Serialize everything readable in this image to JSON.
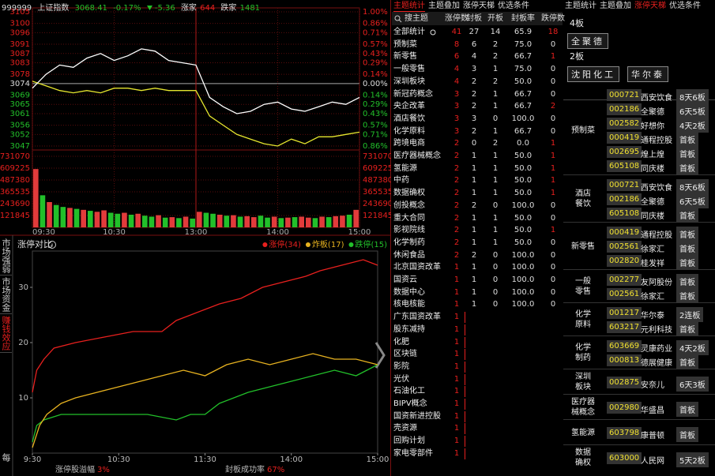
{
  "index_panel": {
    "header": {
      "code": "999999",
      "name": "上证指数",
      "price": "3068.41",
      "pct": "-0.17%",
      "change": "-5.36",
      "up_label": "涨家",
      "up": "644",
      "down_label": "跌家",
      "down": "1481"
    },
    "price_chart": {
      "ylim": [
        3047,
        3105
      ],
      "yticks": [
        3105,
        3100,
        3096,
        3091,
        3087,
        3083,
        3078,
        3074,
        3069,
        3065,
        3061,
        3056,
        3052,
        3047
      ],
      "pct_labels": [
        "1.00%",
        "0.86%",
        "0.71%",
        "0.57%",
        "0.43%",
        "0.29%",
        "0.14%",
        "0.00%",
        "0.14%",
        "0.29%",
        "0.43%",
        "0.57%",
        "0.71%",
        "0.86%"
      ],
      "xlim": [
        0,
        240
      ],
      "xticks": [
        {
          "value": 0,
          "label": "09:30"
        },
        {
          "value": 60,
          "label": "10:30"
        },
        {
          "value": 120,
          "label": "13:00"
        },
        {
          "value": 180,
          "label": "14:00"
        },
        {
          "value": 240,
          "label": "15:00"
        }
      ],
      "x": [
        0,
        10,
        20,
        30,
        40,
        50,
        60,
        70,
        80,
        90,
        100,
        110,
        120,
        130,
        140,
        150,
        160,
        170,
        180,
        190,
        200,
        210,
        220,
        230,
        240
      ],
      "index_values": [
        3072,
        3078,
        3082,
        3081,
        3085,
        3087,
        3084,
        3086,
        3089,
        3088,
        3084,
        3083,
        3082,
        3068,
        3064,
        3061,
        3062,
        3065,
        3066,
        3063,
        3062,
        3064,
        3066,
        3065,
        3068
      ],
      "index_color": "#ffffff",
      "avg_values": [
        3075,
        3073,
        3071,
        3070,
        3071,
        3070,
        3072,
        3072,
        3071,
        3072,
        3071,
        3071,
        3071,
        3060,
        3056,
        3052,
        3050,
        3048,
        3047,
        3050,
        3048,
        3051,
        3051,
        3052,
        3053
      ],
      "avg_color": "#e6e62e"
    },
    "volume_chart": {
      "ylim": [
        0,
        731070
      ],
      "yticks": [
        731070,
        609225,
        487380,
        365535,
        243690,
        121845
      ],
      "up_color": "#e23b3b",
      "down_color": "#22c02a",
      "values": [
        600000,
        330000,
        260000,
        230000,
        210000,
        200000,
        190000,
        180000,
        170000,
        160000,
        175000,
        150000,
        140000,
        150000,
        130000,
        140000,
        120000,
        110000,
        125000,
        100000,
        105000,
        95000,
        110000,
        90000,
        160000,
        150000,
        140000,
        130000,
        120000,
        125000,
        110000,
        115000,
        105000,
        120000,
        100000,
        110000,
        95000,
        100000,
        105000,
        110000,
        100000,
        95000,
        110000,
        105000,
        115000,
        120000,
        130000,
        180000
      ],
      "up": [
        1,
        0,
        1,
        0,
        0,
        1,
        0,
        1,
        0,
        1,
        1,
        0,
        0,
        1,
        0,
        1,
        0,
        0,
        1,
        0,
        1,
        0,
        1,
        0,
        1,
        0,
        0,
        1,
        0,
        1,
        0,
        1,
        1,
        0,
        0,
        1,
        0,
        1,
        0,
        1,
        1,
        0,
        1,
        0,
        1,
        1,
        0,
        1
      ]
    }
  },
  "side_tabs": [
    "市场强弱",
    "市场资金",
    "赚钱效应",
    "每日"
  ],
  "limit_chart": {
    "title": "涨停对比",
    "xlim": [
      0,
      240
    ],
    "xticks": [
      {
        "value": 0,
        "label": "9:30"
      },
      {
        "value": 60,
        "label": "10:30"
      },
      {
        "value": 120,
        "label": "11:30"
      },
      {
        "value": 180,
        "label": "14:00"
      },
      {
        "value": 240,
        "label": "15:00"
      }
    ],
    "ylim": [
      0,
      36
    ],
    "yticks": [
      10,
      20,
      30
    ],
    "series": [
      {
        "name": "涨停(34)",
        "color": "#e8201e",
        "x": [
          0,
          3,
          8,
          15,
          30,
          50,
          70,
          90,
          100,
          110,
          120,
          130,
          145,
          160,
          175,
          190,
          200,
          215,
          230,
          240
        ],
        "values": [
          11,
          15,
          17,
          19,
          20,
          21,
          22,
          22,
          24,
          25,
          26,
          27,
          28,
          30,
          31,
          32,
          33,
          34,
          35,
          34
        ]
      },
      {
        "name": "炸板(17)",
        "color": "#e8b320",
        "x": [
          0,
          5,
          10,
          20,
          30,
          45,
          60,
          75,
          90,
          105,
          120,
          135,
          150,
          165,
          180,
          195,
          210,
          225,
          240
        ],
        "values": [
          1,
          5,
          7,
          9,
          10,
          11,
          12,
          13,
          14,
          15,
          14,
          16,
          17,
          16,
          17,
          18,
          17,
          17,
          16
        ]
      },
      {
        "name": "跌停(15)",
        "color": "#22c02a",
        "x": [
          0,
          3,
          8,
          20,
          40,
          60,
          80,
          100,
          110,
          120,
          130,
          140,
          150,
          165,
          180,
          195,
          210,
          225,
          240
        ],
        "values": [
          2,
          5,
          6,
          7,
          7,
          7,
          7,
          6,
          7,
          7,
          9,
          10,
          11,
          12,
          13,
          14,
          15,
          14,
          16
        ]
      }
    ],
    "footer": [
      {
        "label": "涨停股溢幅",
        "value": "3%"
      },
      {
        "label": "封板成功率",
        "value": "67%"
      }
    ]
  },
  "theme_table": {
    "tabs": [
      "主题统计",
      "主题叠加",
      "涨停天梯",
      "优选条件"
    ],
    "columns": [
      "搜主题",
      "涨停数",
      "封板",
      "开板",
      "封板率",
      "跌停数"
    ],
    "rows": [
      [
        "全部统计",
        41,
        27,
        14,
        "65.9",
        18
      ],
      [
        "预制菜",
        8,
        6,
        2,
        "75.0",
        0
      ],
      [
        "新零售",
        6,
        4,
        2,
        "66.7",
        1
      ],
      [
        "一般零售",
        4,
        3,
        1,
        "75.0",
        0
      ],
      [
        "深圳板块",
        4,
        2,
        2,
        "50.0",
        0
      ],
      [
        "新冠药概念",
        3,
        2,
        1,
        "66.7",
        0
      ],
      [
        "央企改革",
        3,
        2,
        1,
        "66.7",
        2
      ],
      [
        "酒店餐饮",
        3,
        3,
        0,
        "100.0",
        0
      ],
      [
        "化学原料",
        3,
        2,
        1,
        "66.7",
        0
      ],
      [
        "跨境电商",
        2,
        0,
        2,
        "0.0",
        1
      ],
      [
        "医疗器械概念",
        2,
        1,
        1,
        "50.0",
        1
      ],
      [
        "氢能源",
        2,
        1,
        1,
        "50.0",
        1
      ],
      [
        "中药",
        2,
        1,
        1,
        "50.0",
        1
      ],
      [
        "数据确权",
        2,
        1,
        1,
        "50.0",
        1
      ],
      [
        "创投概念",
        2,
        2,
        0,
        "100.0",
        0
      ],
      [
        "重大合同",
        2,
        1,
        1,
        "50.0",
        0
      ],
      [
        "影视院线",
        2,
        1,
        1,
        "50.0",
        1
      ],
      [
        "化学制药",
        2,
        1,
        1,
        "50.0",
        0
      ],
      [
        "休闲食品",
        2,
        2,
        0,
        "100.0",
        0
      ],
      [
        "北京国资改革",
        1,
        1,
        0,
        "100.0",
        0
      ],
      [
        "国资云",
        1,
        1,
        0,
        "100.0",
        0
      ],
      [
        "数据中心",
        1,
        1,
        0,
        "100.0",
        0
      ],
      [
        "核电核能",
        1,
        1,
        0,
        "100.0",
        0
      ],
      [
        "广东国资改革",
        1
      ],
      [
        "股东减持",
        1
      ],
      [
        "化肥",
        1
      ],
      [
        "区块链",
        1
      ],
      [
        "影院",
        1
      ],
      [
        "光伏",
        1
      ],
      [
        "石油化工",
        1
      ],
      [
        "BIPV概念",
        1
      ],
      [
        "国资新进控股",
        1
      ],
      [
        "壳资源",
        1
      ],
      [
        "回购计划",
        1
      ],
      [
        "家电零部件",
        1
      ]
    ]
  },
  "ladder": {
    "tabs": [
      "主题统计",
      "主题叠加",
      "涨停天梯",
      "优选条件"
    ],
    "boards": [
      {
        "label": "4板",
        "stocks": [
          "全聚德"
        ]
      },
      {
        "label": "2板",
        "stocks": [
          "沈阳化工",
          "华尔泰"
        ]
      }
    ],
    "groups": [
      {
        "name": "预制菜",
        "stocks": [
          [
            "000721",
            "西安饮食",
            "8天6板"
          ],
          [
            "002186",
            "全聚德",
            "6天5板"
          ],
          [
            "002582",
            "好想你",
            "4天2板"
          ],
          [
            "000419",
            "通程控股",
            "首板"
          ],
          [
            "002695",
            "煌上煌",
            "首板"
          ],
          [
            "605108",
            "同庆楼",
            "首板"
          ]
        ]
      },
      {
        "name": "酒店餐饮",
        "stocks": [
          [
            "000721",
            "西安饮食",
            "8天6板"
          ],
          [
            "002186",
            "全聚德",
            "6天5板"
          ],
          [
            "605108",
            "同庆楼",
            "首板"
          ]
        ]
      },
      {
        "name": "新零售",
        "stocks": [
          [
            "000419",
            "通程控股",
            "首板"
          ],
          [
            "002561",
            "徐家汇",
            "首板"
          ],
          [
            "002820",
            "桂发祥",
            "首板"
          ]
        ]
      },
      {
        "name": "一般零售",
        "stocks": [
          [
            "002277",
            "友阿股份",
            "首板"
          ],
          [
            "002561",
            "徐家汇",
            "首板"
          ]
        ]
      },
      {
        "name": "化学原料",
        "stocks": [
          [
            "001217",
            "华尔泰",
            "2连板"
          ],
          [
            "603217",
            "元利科技",
            "首板"
          ]
        ]
      },
      {
        "name": "化学制药",
        "stocks": [
          [
            "603669",
            "灵康药业",
            "4天2板"
          ],
          [
            "000813",
            "德展健康",
            "首板"
          ]
        ]
      },
      {
        "name": "深圳板块",
        "stocks": [
          [
            "002875",
            "安奈儿",
            "6天3板"
          ]
        ]
      },
      {
        "name": "医疗器械概念",
        "stocks": [
          [
            "002980",
            "华盛昌",
            "首板"
          ]
        ]
      },
      {
        "name": "氢能源",
        "stocks": [
          [
            "603798",
            "康普顿",
            "首板"
          ]
        ]
      },
      {
        "name": "数据确权",
        "stocks": [
          [
            "603000",
            "人民网",
            "5天2板"
          ]
        ]
      }
    ]
  }
}
